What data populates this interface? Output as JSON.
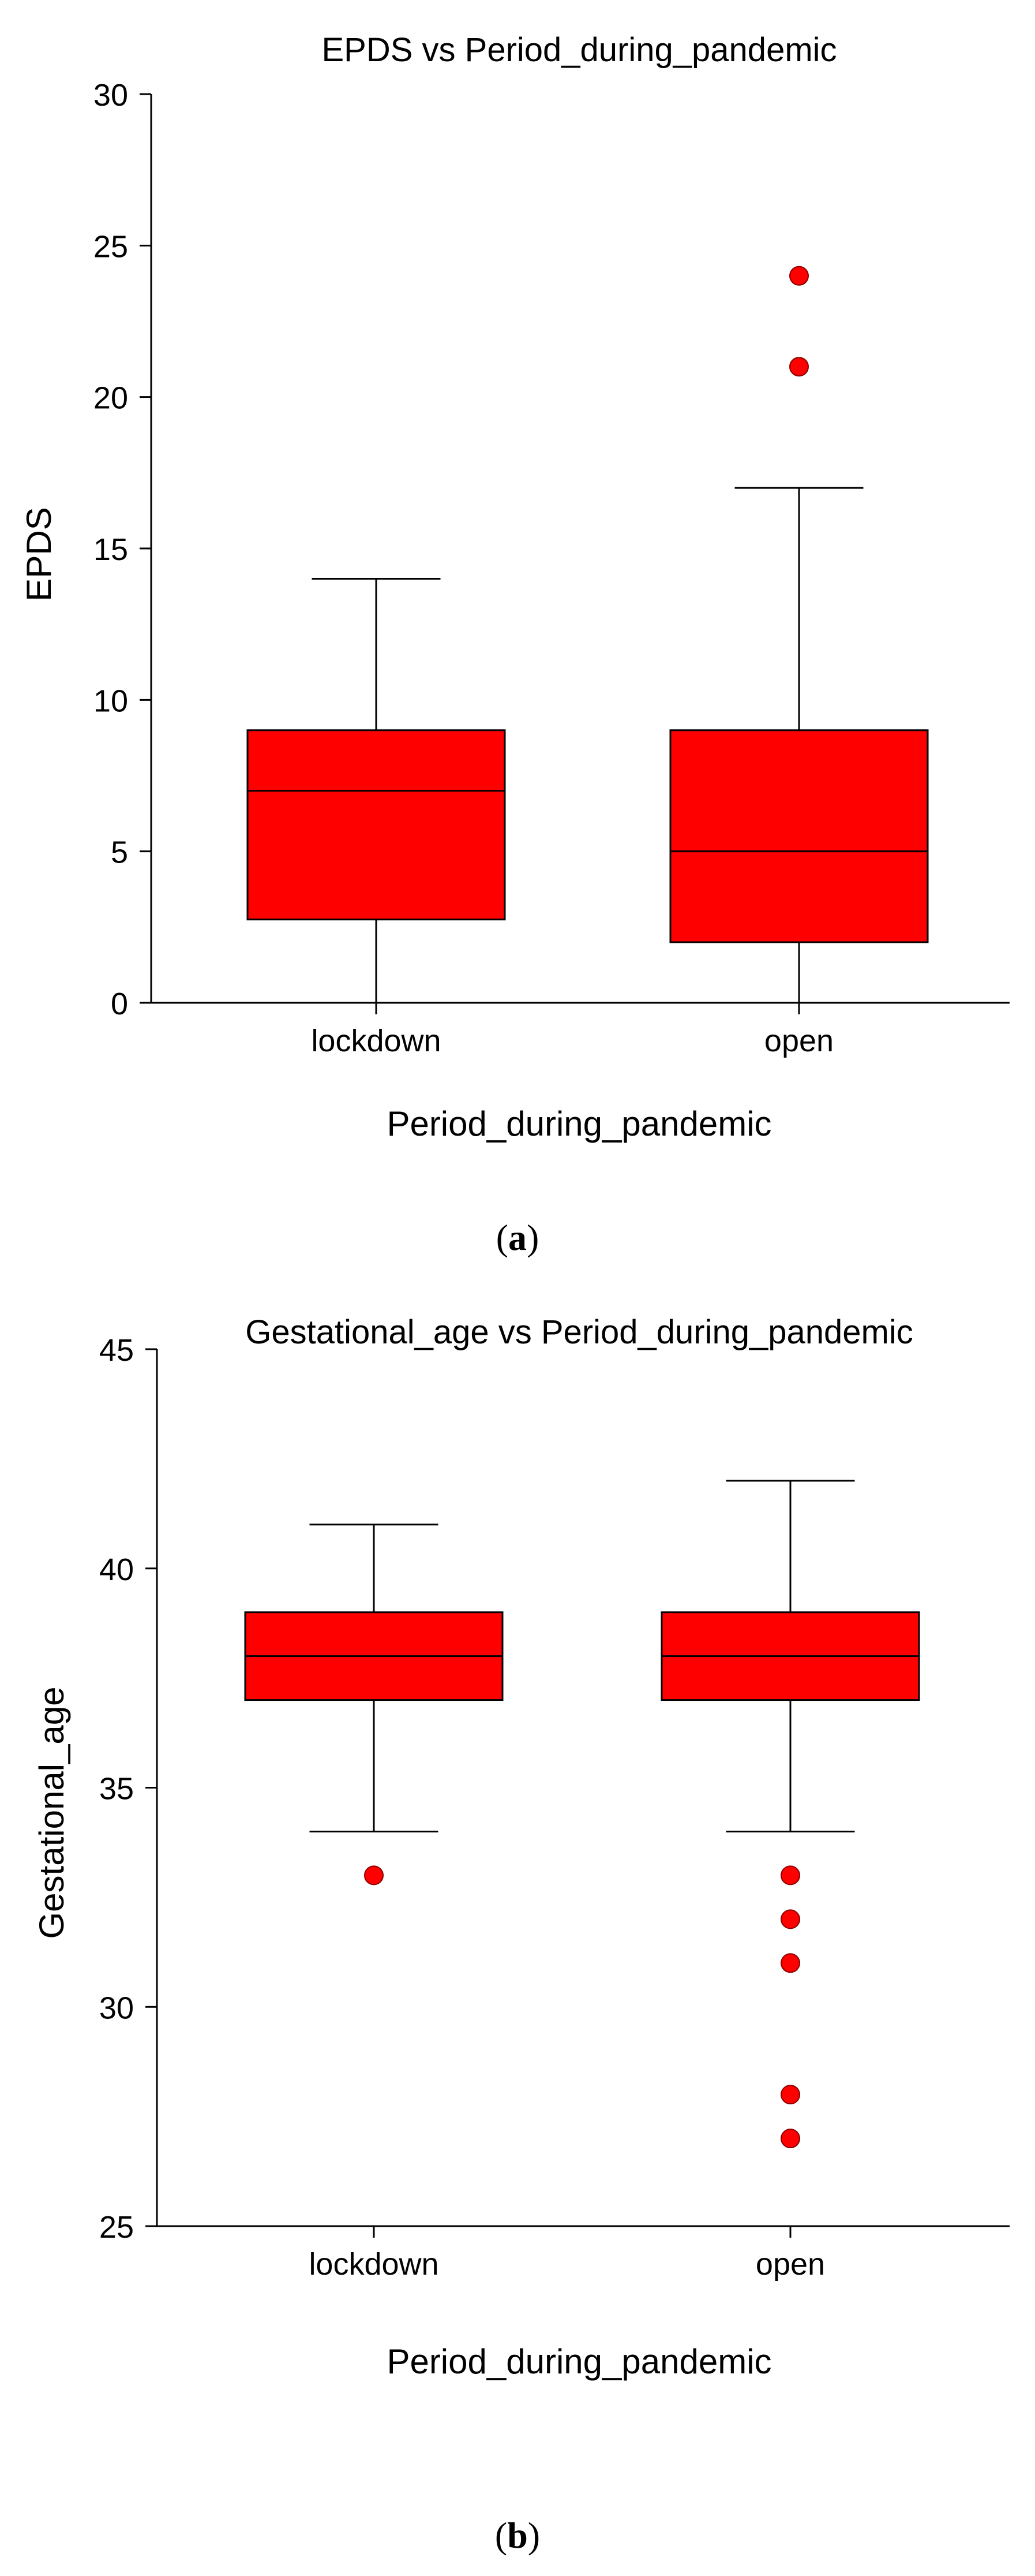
{
  "chart_data": [
    {
      "type": "box",
      "panel_label": "a",
      "title": "EPDS vs Period_during_pandemic",
      "xlabel": "Period_during_pandemic",
      "ylabel": "EPDS",
      "ylim": [
        0,
        30
      ],
      "yticks": [
        0,
        5,
        10,
        15,
        20,
        25,
        30
      ],
      "categories": [
        "lockdown",
        "open"
      ],
      "boxes": [
        {
          "category": "lockdown",
          "whisker_low": 0,
          "q1": 2.75,
          "median": 7,
          "q3": 9,
          "whisker_high": 14,
          "outliers": []
        },
        {
          "category": "open",
          "whisker_low": 0,
          "q1": 2,
          "median": 5,
          "q3": 9,
          "whisker_high": 17,
          "outliers": [
            21,
            24
          ]
        }
      ],
      "box_color": "#ff0000",
      "outlier_color": "#ff0000"
    },
    {
      "type": "box",
      "panel_label": "b",
      "title": "Gestational_age vs Period_during_pandemic",
      "xlabel": "Period_during_pandemic",
      "ylabel": "Gestational_age",
      "ylim": [
        25,
        45
      ],
      "yticks": [
        25,
        30,
        35,
        40,
        45
      ],
      "categories": [
        "lockdown",
        "open"
      ],
      "boxes": [
        {
          "category": "lockdown",
          "whisker_low": 34,
          "q1": 37,
          "median": 38,
          "q3": 39,
          "whisker_high": 41,
          "outliers": [
            33
          ]
        },
        {
          "category": "open",
          "whisker_low": 34,
          "q1": 37,
          "median": 38,
          "q3": 39,
          "whisker_high": 42,
          "outliers": [
            33,
            32,
            31,
            28,
            27
          ]
        }
      ],
      "box_color": "#ff0000",
      "outlier_color": "#ff0000"
    }
  ]
}
